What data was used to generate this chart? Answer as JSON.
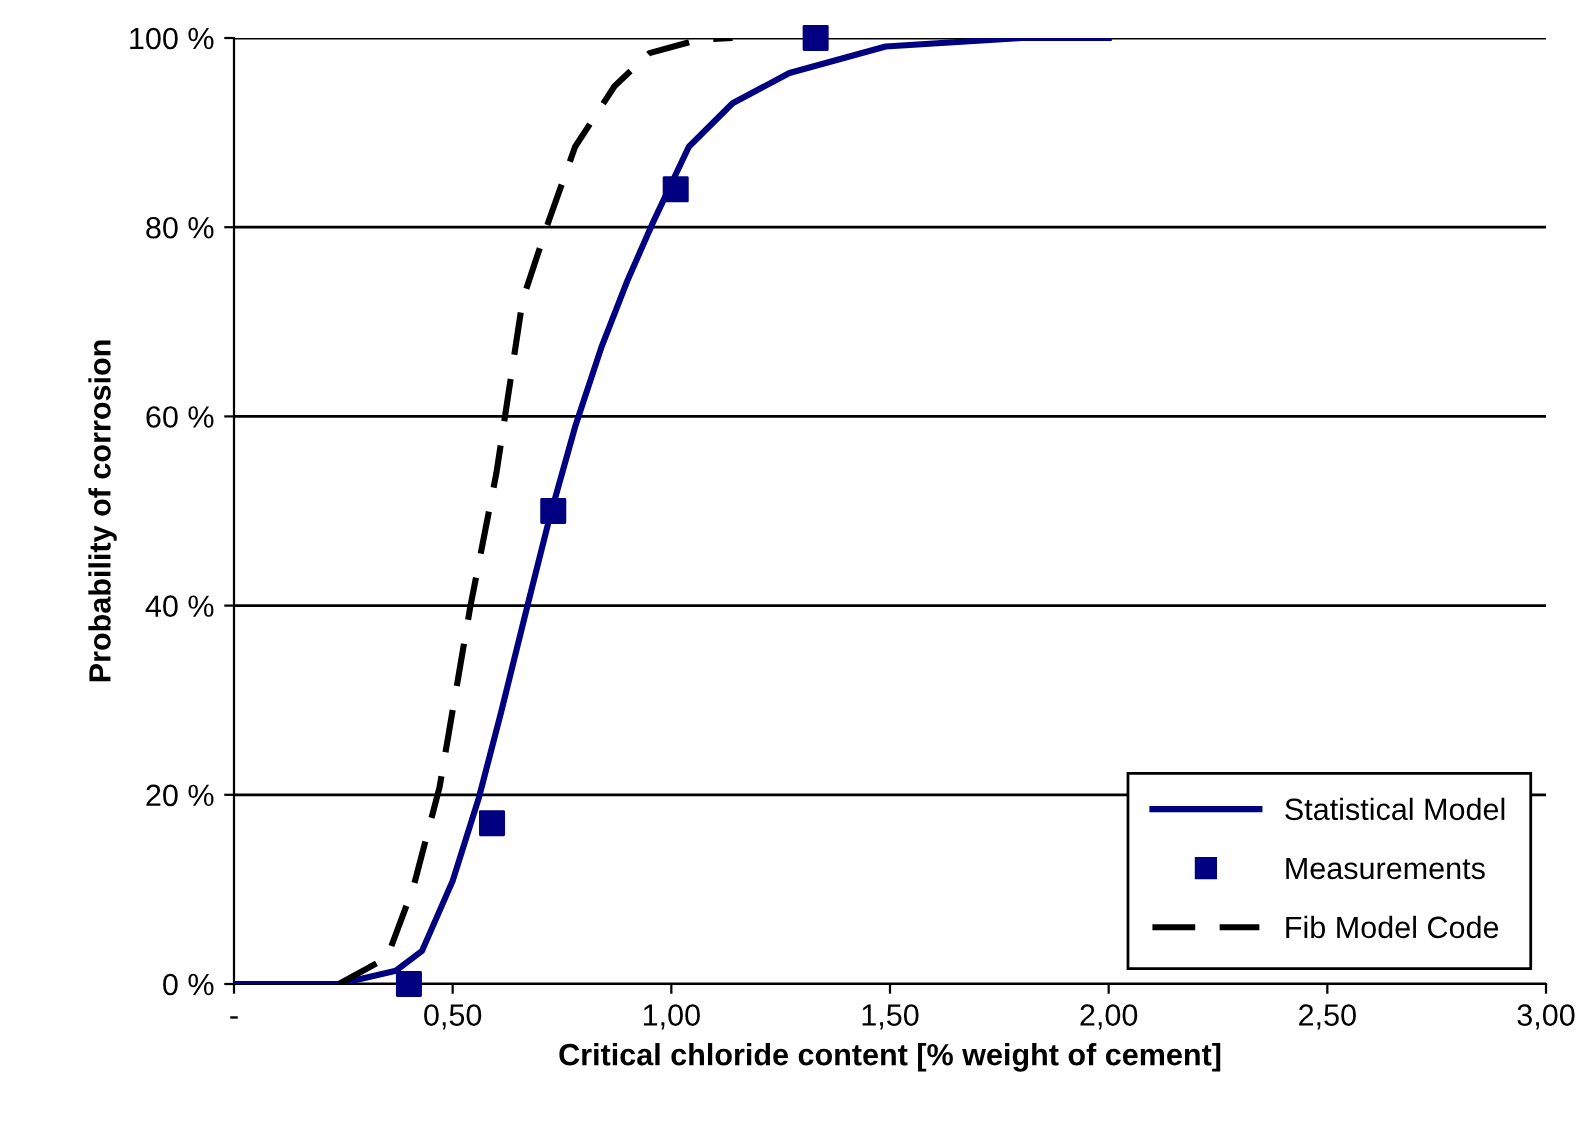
{
  "chart_data": {
    "type": "line",
    "xlabel": "Critical chloride content [% weight of cement]",
    "ylabel": "Probability of corrosion",
    "xlim": [
      0,
      3
    ],
    "ylim": [
      0,
      100
    ],
    "xticks": [
      {
        "value": 0,
        "label": "-"
      },
      {
        "value": 0.5,
        "label": "0,50"
      },
      {
        "value": 1,
        "label": "1,00"
      },
      {
        "value": 1.5,
        "label": "1,50"
      },
      {
        "value": 2,
        "label": "2,00"
      },
      {
        "value": 2.5,
        "label": "2,50"
      },
      {
        "value": 3,
        "label": "3,00"
      }
    ],
    "yticks": [
      {
        "value": 0,
        "label": "0 %"
      },
      {
        "value": 20,
        "label": "20 %"
      },
      {
        "value": 40,
        "label": "40 %"
      },
      {
        "value": 60,
        "label": "60 %"
      },
      {
        "value": 80,
        "label": "80 %"
      },
      {
        "value": 100,
        "label": "100 %"
      }
    ],
    "grid": "y",
    "legend": "bottom right",
    "series": [
      {
        "name": "Statistical Model",
        "color": "#000080",
        "line_style": "solid",
        "marker": "none",
        "x": [
          0,
          0.24,
          0.37,
          0.43,
          0.5,
          0.56,
          0.61,
          0.67,
          0.72,
          0.78,
          0.84,
          0.9,
          0.96,
          1.04,
          1.14,
          1.27,
          1.49,
          1.8,
          2.0
        ],
        "values": [
          0,
          0,
          1.4,
          3.5,
          10.9,
          19.7,
          28.6,
          39.8,
          49,
          58.9,
          67.3,
          74.4,
          80.7,
          88.5,
          93.1,
          96.3,
          99.1,
          100,
          100
        ]
      },
      {
        "name": "Measurements",
        "type": "scatter",
        "color": "#000080",
        "marker": "square",
        "x": [
          0.4,
          0.59,
          0.73,
          1.01,
          1.33
        ],
        "values": [
          0,
          17,
          50,
          84,
          100
        ]
      },
      {
        "name": "Fib Model Code",
        "type": "line",
        "color": "#000000",
        "line_style": "dashed",
        "marker": "none",
        "x": [
          0.24,
          0.35,
          0.41,
          0.47,
          0.54,
          0.6,
          0.66,
          0.72,
          0.78,
          0.87,
          0.95,
          1.06,
          1.14
        ],
        "values": [
          0,
          2.8,
          10.2,
          20.8,
          39.8,
          54,
          72.3,
          80.7,
          88.5,
          94.9,
          98.4,
          99.8,
          100
        ]
      }
    ]
  }
}
